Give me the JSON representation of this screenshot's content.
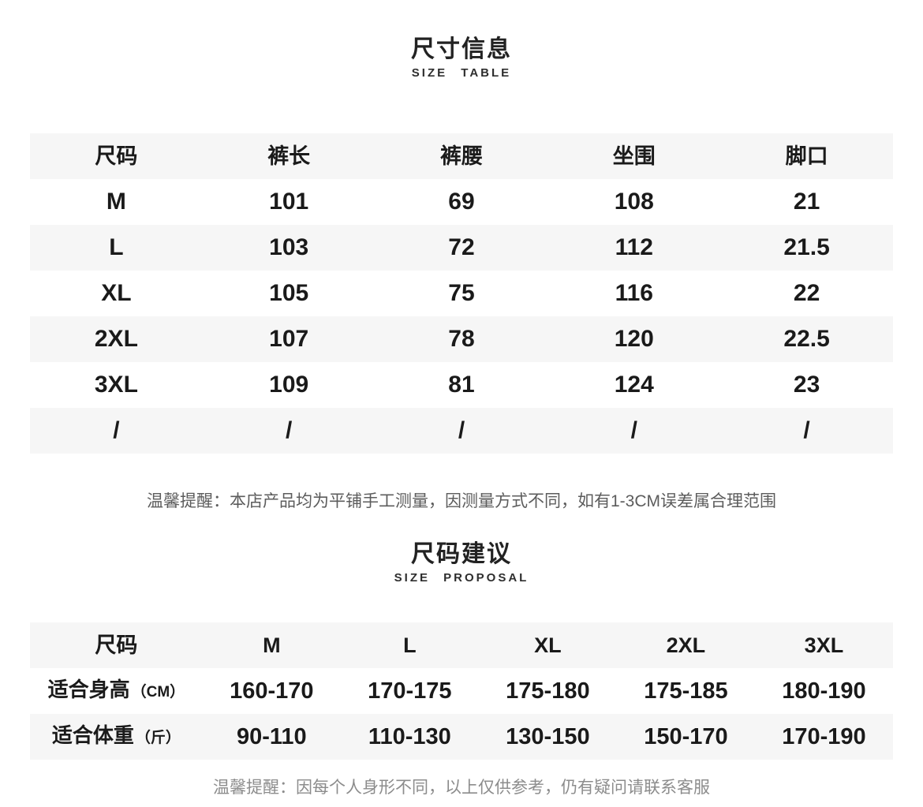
{
  "page": {
    "background_color": "#ffffff",
    "stripe_color": "#f6f6f6",
    "text_color": "#1a1a1a",
    "note_color_primary": "#5c5c5c",
    "note_color_secondary": "#8c8c8c"
  },
  "size_table_section": {
    "title": "尺寸信息",
    "subtitle": "SIZE TABLE",
    "columns": [
      "尺码",
      "裤长",
      "裤腰",
      "坐围",
      "脚口"
    ],
    "rows": [
      [
        "M",
        "101",
        "69",
        "108",
        "21"
      ],
      [
        "L",
        "103",
        "72",
        "112",
        "21.5"
      ],
      [
        "XL",
        "105",
        "75",
        "116",
        "22"
      ],
      [
        "2XL",
        "107",
        "78",
        "120",
        "22.5"
      ],
      [
        "3XL",
        "109",
        "81",
        "124",
        "23"
      ],
      [
        "/",
        "/",
        "/",
        "/",
        "/"
      ]
    ],
    "note": "温馨提醒：本店产品均为平铺手工测量，因测量方式不同，如有1-3CM误差属合理范围"
  },
  "size_proposal_section": {
    "title": "尺码建议",
    "subtitle": "SIZE PROPOSAL",
    "columns": [
      "尺码",
      "M",
      "L",
      "XL",
      "2XL",
      "3XL"
    ],
    "rows": [
      {
        "label": "适合身高",
        "unit": "（CM）",
        "values": [
          "160-170",
          "170-175",
          "175-180",
          "175-185",
          "180-190"
        ]
      },
      {
        "label": "适合体重",
        "unit": "（斤）",
        "values": [
          "90-110",
          "110-130",
          "130-150",
          "150-170",
          "170-190"
        ]
      }
    ],
    "note": "温馨提醒：因每个人身形不同，以上仅供参考，仍有疑问请联系客服"
  }
}
